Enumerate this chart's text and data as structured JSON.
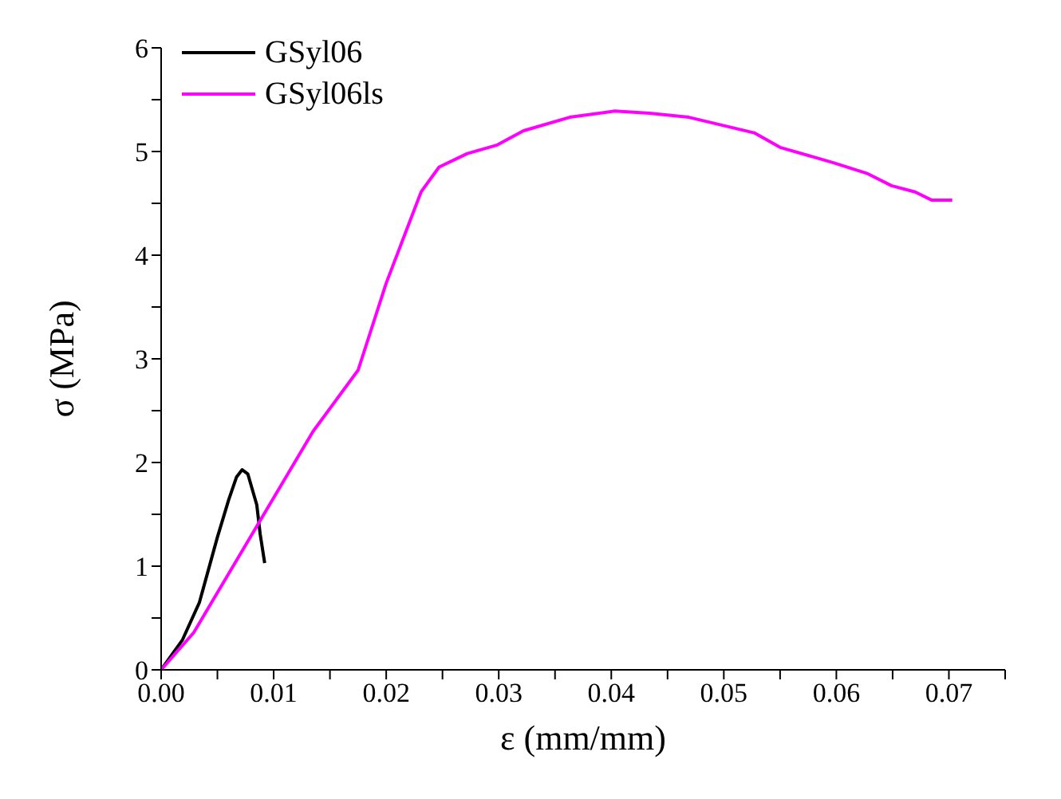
{
  "chart_data": {
    "type": "line",
    "xlabel": "ε (mm/mm)",
    "ylabel": "σ (MPa)",
    "xlim": [
      0,
      0.075
    ],
    "xticks": [
      {
        "value": 0,
        "label": "0.00"
      },
      {
        "value": 0.005,
        "label": null
      },
      {
        "value": 0.01,
        "label": "0.01"
      },
      {
        "value": 0.015,
        "label": null
      },
      {
        "value": 0.02,
        "label": "0.02"
      },
      {
        "value": 0.025,
        "label": null
      },
      {
        "value": 0.03,
        "label": "0.03"
      },
      {
        "value": 0.035,
        "label": null
      },
      {
        "value": 0.04,
        "label": "0.04"
      },
      {
        "value": 0.045,
        "label": null
      },
      {
        "value": 0.05,
        "label": "0.05"
      },
      {
        "value": 0.055,
        "label": null
      },
      {
        "value": 0.06,
        "label": "0.06"
      },
      {
        "value": 0.065,
        "label": null
      },
      {
        "value": 0.07,
        "label": "0.07"
      },
      {
        "value": 0.075,
        "label": null
      }
    ],
    "ylim": [
      0,
      6
    ],
    "yticks": [
      0,
      {
        "value": 0.5,
        "label": null
      },
      1,
      {
        "value": 1.5,
        "label": null
      },
      2,
      {
        "value": 2.5,
        "label": null
      },
      3,
      {
        "value": 3.5,
        "label": null
      },
      4,
      {
        "value": 4.5,
        "label": null
      },
      5,
      {
        "value": 5.5,
        "label": null
      },
      6
    ],
    "grid": false,
    "legend": "top left",
    "marker": "none",
    "line_style": "solid",
    "series": [
      {
        "name": "GSyl06",
        "color": "#000000",
        "x": [
          0,
          0.0019,
          0.0034,
          0.005,
          0.006,
          0.0067,
          0.0072,
          0.0077,
          0.0085,
          0.0088,
          0.0092
        ],
        "values": [
          0,
          0.29,
          0.65,
          1.28,
          1.64,
          1.86,
          1.93,
          1.89,
          1.59,
          1.31,
          1.03
        ]
      },
      {
        "name": "GSyl06ls",
        "color": "#ff00ff",
        "x": [
          0,
          0.0029,
          0.0135,
          0.0175,
          0.02,
          0.0231,
          0.0247,
          0.0272,
          0.0298,
          0.0322,
          0.0363,
          0.0403,
          0.0434,
          0.0469,
          0.0527,
          0.055,
          0.0598,
          0.0627,
          0.0649,
          0.067,
          0.0685,
          0.0703
        ],
        "values": [
          0,
          0.36,
          2.3,
          2.89,
          3.73,
          4.61,
          4.85,
          4.98,
          5.06,
          5.2,
          5.33,
          5.39,
          5.37,
          5.33,
          5.18,
          5.04,
          4.89,
          4.79,
          4.67,
          4.61,
          4.53,
          4.53
        ]
      }
    ]
  }
}
